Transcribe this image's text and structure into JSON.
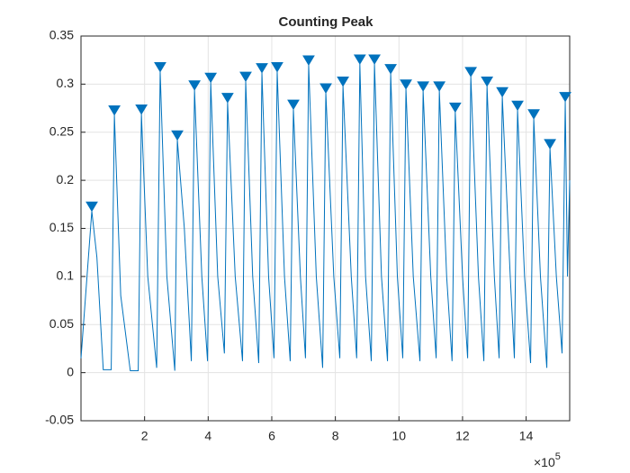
{
  "chart_data": {
    "type": "line",
    "title": "Counting Peak",
    "x_exponent": {
      "base": "×10",
      "power": "5"
    },
    "xlim": [
      0,
      15.37
    ],
    "xticks": [
      2,
      4,
      6,
      8,
      10,
      12,
      14
    ],
    "ylim": [
      -0.05,
      0.35
    ],
    "yticks": [
      -0.05,
      0,
      0.05,
      0.1,
      0.15,
      0.2,
      0.25,
      0.3,
      0.35
    ],
    "grid": true,
    "series": [
      {
        "color": "#0072bd",
        "style": "line",
        "x": [
          0,
          0.34,
          0.5,
          0.7,
          0.95,
          1.05,
          1.25,
          1.55,
          1.8,
          1.9,
          2.1,
          2.38,
          2.49,
          2.7,
          2.95,
          3.03,
          3.25,
          3.47,
          3.57,
          3.8,
          3.98,
          4.08,
          4.3,
          4.51,
          4.61,
          4.85,
          5.08,
          5.18,
          5.4,
          5.59,
          5.69,
          5.9,
          6.07,
          6.17,
          6.4,
          6.58,
          6.68,
          6.9,
          7.06,
          7.16,
          7.4,
          7.6,
          7.7,
          7.95,
          8.14,
          8.24,
          8.5,
          8.67,
          8.77,
          8.95,
          9.13,
          9.23,
          9.45,
          9.64,
          9.74,
          9.95,
          10.12,
          10.22,
          10.45,
          10.66,
          10.76,
          11.0,
          11.17,
          11.27,
          11.5,
          11.67,
          11.77,
          12.0,
          12.16,
          12.26,
          12.5,
          12.67,
          12.77,
          13.0,
          13.15,
          13.25,
          13.5,
          13.63,
          13.73,
          13.95,
          14.14,
          14.24,
          14.45,
          14.65,
          14.75,
          14.95,
          15.13,
          15.23,
          15.3,
          15.37
        ],
        "values": [
          0.015,
          0.168,
          0.12,
          0.003,
          0.003,
          0.268,
          0.08,
          0.002,
          0.002,
          0.269,
          0.1,
          0.005,
          0.313,
          0.1,
          0.002,
          0.242,
          0.15,
          0.012,
          0.294,
          0.1,
          0.012,
          0.302,
          0.1,
          0.02,
          0.281,
          0.1,
          0.012,
          0.303,
          0.1,
          0.01,
          0.312,
          0.1,
          0.015,
          0.313,
          0.1,
          0.012,
          0.274,
          0.1,
          0.015,
          0.32,
          0.1,
          0.005,
          0.291,
          0.1,
          0.015,
          0.298,
          0.1,
          0.015,
          0.321,
          0.1,
          0.012,
          0.321,
          0.1,
          0.012,
          0.311,
          0.1,
          0.015,
          0.295,
          0.1,
          0.012,
          0.293,
          0.1,
          0.015,
          0.293,
          0.1,
          0.012,
          0.271,
          0.1,
          0.015,
          0.308,
          0.1,
          0.012,
          0.298,
          0.1,
          0.015,
          0.287,
          0.1,
          0.015,
          0.273,
          0.1,
          0.01,
          0.264,
          0.1,
          0.005,
          0.233,
          0.1,
          0.02,
          0.282,
          0.1,
          0.2
        ]
      },
      {
        "color": "#0072bd",
        "style": "marker",
        "marker": "triangle-down",
        "x": [
          0.34,
          1.05,
          1.9,
          2.49,
          3.03,
          3.57,
          4.08,
          4.61,
          5.18,
          5.69,
          6.17,
          6.68,
          7.16,
          7.7,
          8.24,
          8.77,
          9.23,
          9.74,
          10.22,
          10.76,
          11.27,
          11.77,
          12.26,
          12.77,
          13.25,
          13.73,
          14.24,
          14.75,
          15.23
        ],
        "values": [
          0.168,
          0.268,
          0.269,
          0.313,
          0.242,
          0.294,
          0.302,
          0.281,
          0.303,
          0.312,
          0.313,
          0.274,
          0.32,
          0.291,
          0.298,
          0.321,
          0.321,
          0.311,
          0.295,
          0.293,
          0.293,
          0.271,
          0.308,
          0.298,
          0.287,
          0.273,
          0.264,
          0.233,
          0.282
        ]
      }
    ]
  }
}
